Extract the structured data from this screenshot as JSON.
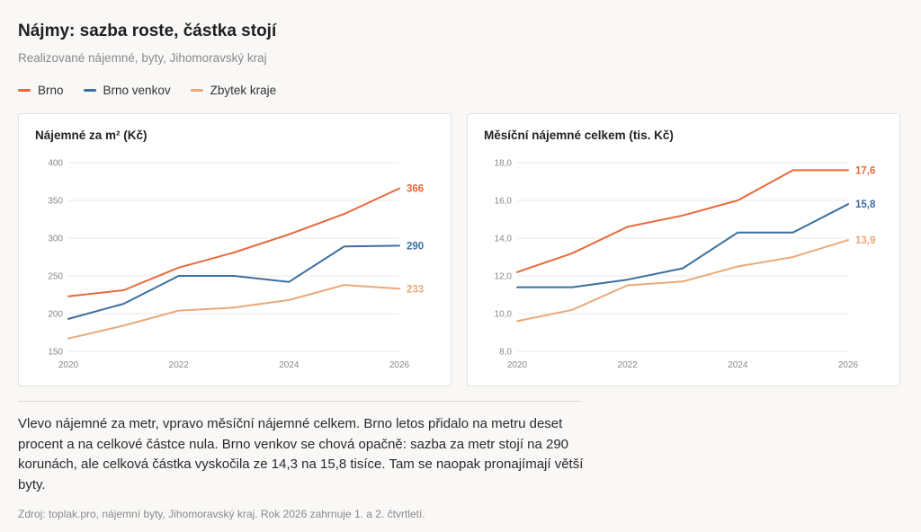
{
  "header": {
    "title": "Nájmy: sazba roste, částka stojí",
    "subtitle": "Realizované nájemné, byty, Jihomoravský kraj"
  },
  "legend": [
    {
      "label": "Brno",
      "color": "#e8693a"
    },
    {
      "label": "Brno venkov",
      "color": "#3b6fa0"
    },
    {
      "label": "Zbytek kraje",
      "color": "#e9a97a"
    }
  ],
  "chart_data": [
    {
      "type": "line",
      "title": "Nájemné za m² (Kč)",
      "x": [
        2020,
        2021,
        2022,
        2023,
        2024,
        2025,
        2026
      ],
      "x_ticks": [
        "2020",
        "2022",
        "2024",
        "2026"
      ],
      "y_ticks": [
        "150",
        "200",
        "250",
        "300",
        "350",
        "400"
      ],
      "ylim": [
        150,
        400
      ],
      "grid": true,
      "series": [
        {
          "name": "Brno",
          "color": "#e8693a",
          "values": [
            223,
            231,
            261,
            281,
            305,
            332,
            366
          ],
          "end_label": "366"
        },
        {
          "name": "Brno venkov",
          "color": "#3b6fa0",
          "values": [
            193,
            213,
            250,
            250,
            242,
            289,
            290
          ],
          "end_label": "290"
        },
        {
          "name": "Zbytek kraje",
          "color": "#e9a97a",
          "values": [
            167,
            184,
            204,
            208,
            218,
            238,
            233
          ],
          "end_label": "233"
        }
      ]
    },
    {
      "type": "line",
      "title": "Měsíční nájemné celkem (tis. Kč)",
      "x": [
        2020,
        2021,
        2022,
        2023,
        2024,
        2025,
        2026
      ],
      "x_ticks": [
        "2020",
        "2022",
        "2024",
        "2026"
      ],
      "y_ticks": [
        "8,0",
        "10,0",
        "12,0",
        "14,0",
        "16,0",
        "18,0"
      ],
      "ylim": [
        8,
        18
      ],
      "grid": true,
      "series": [
        {
          "name": "Brno",
          "color": "#e8693a",
          "values": [
            12.2,
            13.2,
            14.6,
            15.2,
            16.0,
            17.6,
            17.6
          ],
          "end_label": "17,6"
        },
        {
          "name": "Brno venkov",
          "color": "#3b6fa0",
          "values": [
            11.4,
            11.4,
            11.8,
            12.4,
            14.3,
            14.3,
            15.8
          ],
          "end_label": "15,8"
        },
        {
          "name": "Zbytek kraje",
          "color": "#e9a97a",
          "values": [
            9.6,
            10.2,
            11.5,
            11.7,
            12.5,
            13.0,
            13.9
          ],
          "end_label": "13,9"
        }
      ]
    }
  ],
  "body_text": "Vlevo nájemné za metr, vpravo měsíční nájemné celkem. Brno letos přidalo na metru deset procent a na celkové částce nula. Brno venkov se chová opačně: sazba za metr stojí na 290 korunách, ale celková částka vyskočila ze 14,3 na 15,8 tisíce. Tam se naopak pronajímají větší byty.",
  "source": "Zdroj: toplak.pro, nájemní byty, Jihomoravský kraj. Rok 2026 zahrnuje 1. a 2. čtvrtletí."
}
